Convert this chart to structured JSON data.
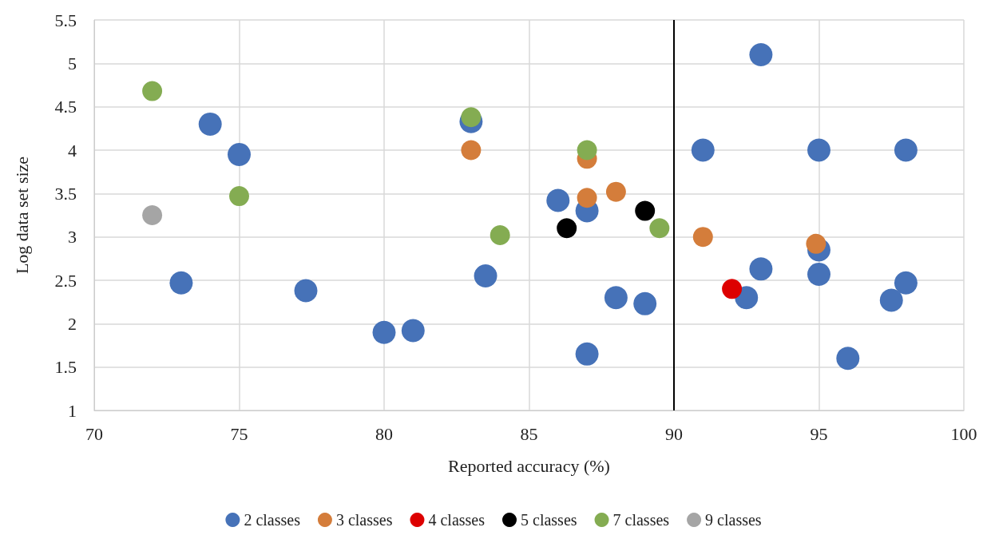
{
  "chart_data": {
    "type": "scatter",
    "xlabel": "Reported accuracy (%)",
    "ylabel": "Log data set size",
    "xlim": [
      70,
      100
    ],
    "xticks": [
      70,
      75,
      80,
      85,
      90,
      95,
      100
    ],
    "ylim": [
      1,
      5.5
    ],
    "yticks": [
      1,
      1.5,
      2,
      2.5,
      3,
      3.5,
      4,
      4.5,
      5,
      5.5
    ],
    "grid": true,
    "legend": "bottom",
    "marker": "circle",
    "ref_lines": [
      {
        "axis": "x",
        "value": 90,
        "color": "#000000"
      }
    ],
    "series": [
      {
        "name": "2 classes",
        "color": "#4672b8",
        "x": [
          74,
          75,
          73,
          77.3,
          80,
          81,
          83,
          83.5,
          86,
          87,
          87,
          88,
          89,
          91,
          93,
          95,
          98,
          93,
          92.5,
          95,
          95,
          96,
          97.5,
          98
        ],
        "values": [
          4.3,
          3.95,
          2.47,
          2.38,
          1.9,
          1.92,
          4.33,
          2.55,
          3.42,
          3.3,
          1.65,
          2.3,
          2.23,
          4.0,
          5.1,
          4.0,
          4.0,
          2.63,
          2.3,
          2.85,
          2.57,
          1.6,
          2.27,
          2.47
        ]
      },
      {
        "name": "3 classes",
        "color": "#d47d3b",
        "x": [
          83,
          87,
          87,
          88,
          91,
          94.9
        ],
        "values": [
          4.0,
          3.9,
          3.45,
          3.52,
          3.0,
          2.92
        ]
      },
      {
        "name": "4 classes",
        "color": "#dd0000",
        "x": [
          92
        ],
        "values": [
          2.4
        ]
      },
      {
        "name": "5 classes",
        "color": "#000000",
        "x": [
          86.3,
          89
        ],
        "values": [
          3.1,
          3.3
        ]
      },
      {
        "name": "7 classes",
        "color": "#84ac52",
        "x": [
          72,
          75,
          83,
          84,
          87,
          89.5
        ],
        "values": [
          4.68,
          3.47,
          4.38,
          3.02,
          4.0,
          3.1
        ]
      },
      {
        "name": "9 classes",
        "color": "#a5a5a5",
        "x": [
          72
        ],
        "values": [
          3.25
        ]
      }
    ]
  }
}
